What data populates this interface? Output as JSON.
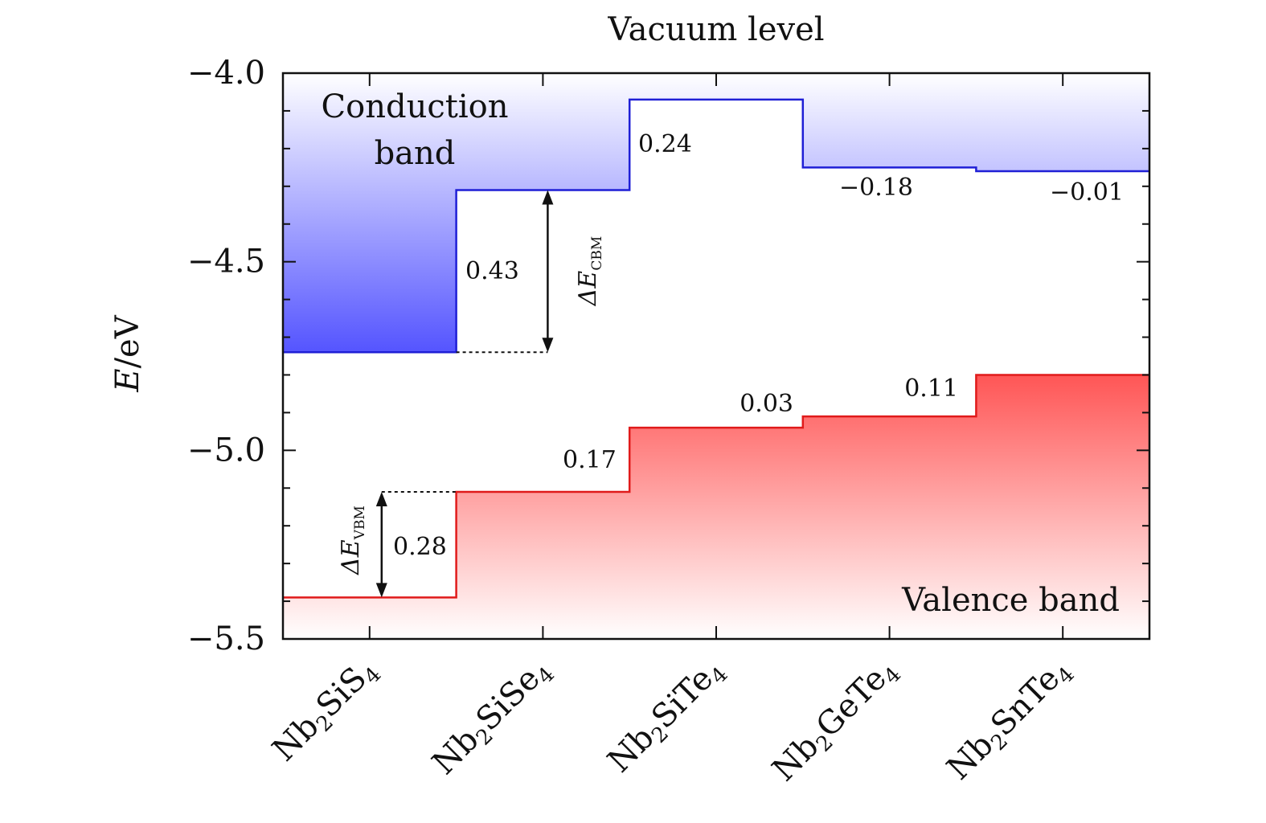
{
  "chart_data": {
    "type": "line",
    "title": "Vacuum level",
    "ylabel": "E/eV",
    "ylim": [
      -5.5,
      -4.0
    ],
    "yticks": [
      "−4.0",
      "−4.5",
      "−5.0",
      "−5.5"
    ],
    "categories": [
      "Nb2SiS4",
      "Nb2SiSe4",
      "Nb2SiTe4",
      "Nb2GeTe4",
      "Nb2SnTe4"
    ],
    "series": [
      {
        "name": "Conduction band",
        "color": "#1f1fd6",
        "values": [
          -4.74,
          -4.31,
          -4.07,
          -4.25,
          -4.26
        ]
      },
      {
        "name": "Valence band",
        "color": "#e01b1b",
        "values": [
          -5.39,
          -5.11,
          -4.94,
          -4.91,
          -4.8
        ]
      }
    ],
    "conduction_offsets": [
      "0.43",
      "0.24",
      "−0.18",
      "−0.01"
    ],
    "valence_offsets": [
      "0.28",
      "0.17",
      "0.03",
      "0.11"
    ],
    "delta_labels": {
      "cbm_main": "ΔE",
      "cbm_sub": "CBM",
      "vbm_main": "ΔE",
      "vbm_sub": "VBM"
    },
    "grid": false,
    "legend": "none"
  }
}
